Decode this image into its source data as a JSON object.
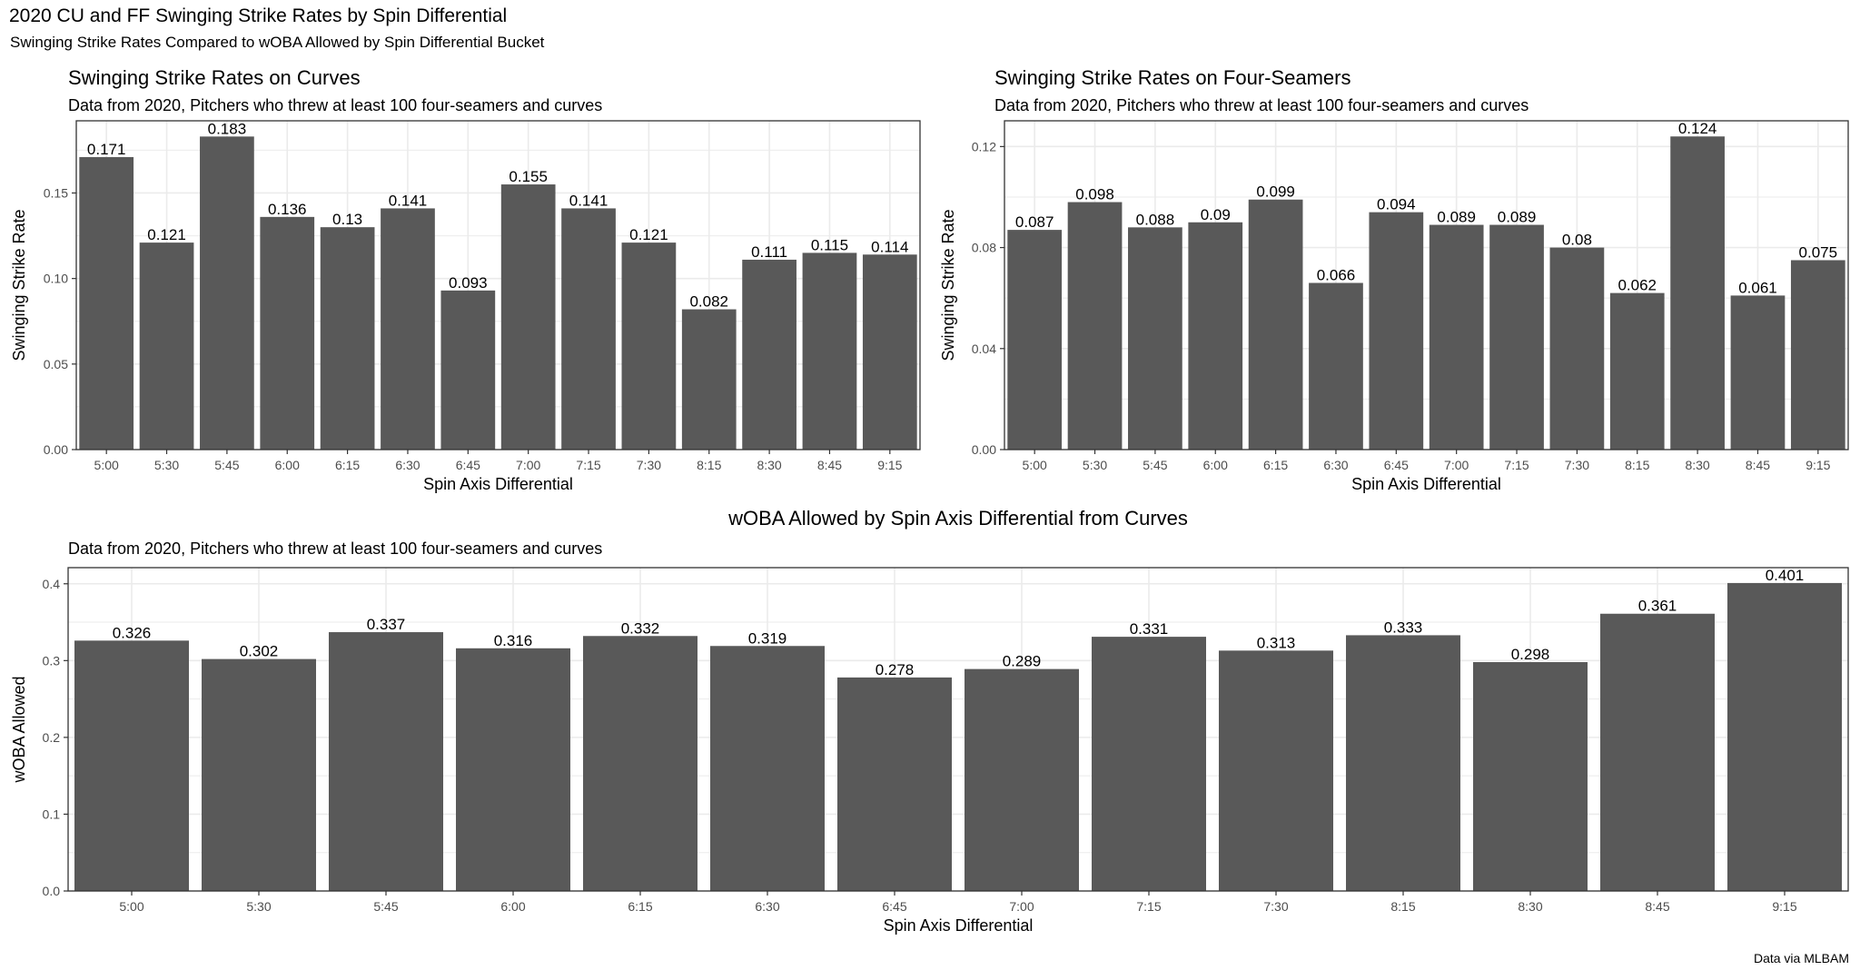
{
  "page": {
    "title": "2020 CU and FF Swinging Strike Rates by Spin Differential",
    "subtitle": "Swinging Strike Rates Compared to wOBA Allowed by Spin Differential Bucket",
    "caption": "Data via MLBAM"
  },
  "colors": {
    "bar": "#595959",
    "panel_border": "#333333",
    "grid": "#ebebeb",
    "tick_text": "#4d4d4d"
  },
  "chart_data": [
    {
      "type": "bar",
      "title": "Swinging Strike Rates on Curves",
      "subtitle": "Data from 2020, Pitchers who threw at least 100 four-seamers and curves",
      "xlabel": "Spin Axis Differential",
      "ylabel": "Swinging Strike Rate",
      "categories": [
        "5:00",
        "5:30",
        "5:45",
        "6:00",
        "6:15",
        "6:30",
        "6:45",
        "7:00",
        "7:15",
        "7:30",
        "8:15",
        "8:30",
        "8:45",
        "9:15"
      ],
      "values": [
        0.171,
        0.121,
        0.183,
        0.136,
        0.13,
        0.141,
        0.093,
        0.155,
        0.141,
        0.121,
        0.082,
        0.111,
        0.115,
        0.114
      ],
      "value_labels": [
        "0.171",
        "0.121",
        "0.183",
        "0.136",
        "0.13",
        "0.141",
        "0.093",
        "0.155",
        "0.141",
        "0.121",
        "0.082",
        "0.111",
        "0.115",
        "0.114"
      ],
      "yticks": [
        0,
        0.05,
        0.1,
        0.15
      ],
      "ytick_labels": [
        "0.00",
        "0.05",
        "0.10",
        "0.15"
      ],
      "ylim": [
        0,
        0.1922
      ],
      "grid": true
    },
    {
      "type": "bar",
      "title": "Swinging Strike Rates on Four-Seamers",
      "subtitle": "Data from 2020, Pitchers who threw at least 100 four-seamers and curves",
      "xlabel": "Spin Axis Differential",
      "ylabel": "Swinging Strike Rate",
      "categories": [
        "5:00",
        "5:30",
        "5:45",
        "6:00",
        "6:15",
        "6:30",
        "6:45",
        "7:00",
        "7:15",
        "7:30",
        "8:15",
        "8:30",
        "8:45",
        "9:15"
      ],
      "values": [
        0.087,
        0.098,
        0.088,
        0.09,
        0.099,
        0.066,
        0.094,
        0.089,
        0.089,
        0.08,
        0.062,
        0.124,
        0.061,
        0.075
      ],
      "value_labels": [
        "0.087",
        "0.098",
        "0.088",
        "0.09",
        "0.099",
        "0.066",
        "0.094",
        "0.089",
        "0.089",
        "0.08",
        "0.062",
        "0.124",
        "0.061",
        "0.075"
      ],
      "yticks": [
        0,
        0.04,
        0.08,
        0.12
      ],
      "ytick_labels": [
        "0.00",
        "0.04",
        "0.08",
        "0.12"
      ],
      "ylim": [
        0,
        0.1302
      ],
      "grid": true
    },
    {
      "type": "bar",
      "title": "wOBA Allowed by Spin Axis Differential from Curves",
      "subtitle": "Data from 2020, Pitchers who threw at least 100 four-seamers and curves",
      "xlabel": "Spin Axis Differential",
      "ylabel": "wOBA Allowed",
      "categories": [
        "5:00",
        "5:30",
        "5:45",
        "6:00",
        "6:15",
        "6:30",
        "6:45",
        "7:00",
        "7:15",
        "7:30",
        "8:15",
        "8:30",
        "8:45",
        "9:15"
      ],
      "values": [
        0.326,
        0.302,
        0.337,
        0.316,
        0.332,
        0.319,
        0.278,
        0.289,
        0.331,
        0.313,
        0.333,
        0.298,
        0.361,
        0.401
      ],
      "value_labels": [
        "0.326",
        "0.302",
        "0.337",
        "0.316",
        "0.332",
        "0.319",
        "0.278",
        "0.289",
        "0.331",
        "0.313",
        "0.333",
        "0.298",
        "0.361",
        "0.401"
      ],
      "yticks": [
        0,
        0.1,
        0.2,
        0.3,
        0.4
      ],
      "ytick_labels": [
        "0.0",
        "0.1",
        "0.2",
        "0.3",
        "0.4"
      ],
      "ylim": [
        0,
        0.421
      ],
      "grid": true
    }
  ]
}
